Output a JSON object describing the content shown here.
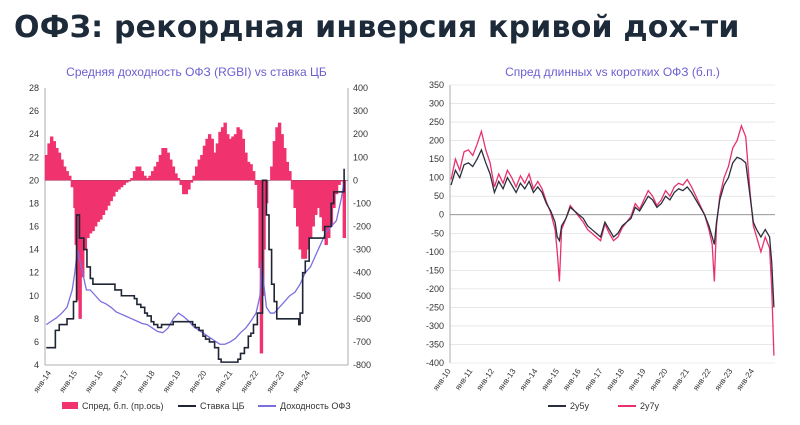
{
  "title": "ОФЗ: рекордная инверсия кривой дох-ти",
  "colors": {
    "title": "#1d2a3a",
    "spread": "#f0326e",
    "key_rate": "#1f2535",
    "yield": "#7a6fe0",
    "y2y5": "#2a2f3d",
    "y2y7": "#e8316f",
    "chart_title": "#6b5fd0"
  },
  "chart_data": [
    {
      "type": "bar+line",
      "title": "Средняя доходность ОФЗ (RGBI) vs ставка ЦБ",
      "x_ticks": [
        "янв-14",
        "янв-15",
        "янв-16",
        "янв-17",
        "янв-18",
        "янв-19",
        "янв-20",
        "янв-21",
        "янв-22",
        "янв-23",
        "янв-24"
      ],
      "x_range": [
        2013.75,
        2025.45
      ],
      "left_axis": {
        "range": [
          4,
          28
        ],
        "ticks": [
          "28",
          "26",
          "24",
          "22",
          "20",
          "18",
          "16",
          "14",
          "12",
          "10",
          "8",
          "6",
          "4"
        ]
      },
      "right_axis": {
        "range": [
          -800,
          400
        ],
        "ticks": [
          "400",
          "300",
          "200",
          "100",
          "0",
          "-100",
          "-200",
          "-300",
          "-400",
          "-500",
          "-600",
          "-700",
          "-800"
        ]
      },
      "legend": [
        "Спред, б.п. (пр.ось)",
        "Ставка ЦБ",
        "Доходность ОФЗ"
      ],
      "series": [
        {
          "name": "Спред, б.п. (пр.ось)",
          "axis": "right",
          "style": "bars",
          "x": [
            2013.8,
            2013.9,
            2014.0,
            2014.1,
            2014.2,
            2014.3,
            2014.4,
            2014.5,
            2014.6,
            2014.7,
            2014.8,
            2014.9,
            2014.95,
            2015.0,
            2015.1,
            2015.2,
            2015.3,
            2015.4,
            2015.5,
            2015.6,
            2015.7,
            2015.8,
            2015.9,
            2016.0,
            2016.1,
            2016.2,
            2016.3,
            2016.4,
            2016.5,
            2016.6,
            2016.7,
            2016.8,
            2016.9,
            2017.0,
            2017.1,
            2017.2,
            2017.3,
            2017.4,
            2017.5,
            2017.6,
            2017.7,
            2017.8,
            2017.9,
            2018.0,
            2018.1,
            2018.2,
            2018.3,
            2018.4,
            2018.5,
            2018.6,
            2018.7,
            2018.8,
            2018.9,
            2019.0,
            2019.1,
            2019.2,
            2019.3,
            2019.4,
            2019.5,
            2019.6,
            2019.7,
            2019.8,
            2019.9,
            2020.0,
            2020.1,
            2020.2,
            2020.3,
            2020.4,
            2020.5,
            2020.6,
            2020.7,
            2020.8,
            2020.9,
            2021.0,
            2021.1,
            2021.2,
            2021.3,
            2021.4,
            2021.5,
            2021.6,
            2021.7,
            2021.8,
            2021.9,
            2022.0,
            2022.05,
            2022.1,
            2022.15,
            2022.2,
            2022.3,
            2022.4,
            2022.5,
            2022.6,
            2022.7,
            2022.8,
            2022.9,
            2023.0,
            2023.1,
            2023.2,
            2023.3,
            2023.4,
            2023.5,
            2023.6,
            2023.7,
            2023.8,
            2023.9,
            2024.0,
            2024.1,
            2024.2,
            2024.3,
            2024.4,
            2024.5,
            2024.6,
            2024.7,
            2024.8,
            2024.9,
            2025.0,
            2025.1,
            2025.2,
            2025.3
          ],
          "values": [
            110,
            160,
            190,
            170,
            140,
            120,
            90,
            60,
            40,
            20,
            -30,
            -120,
            -280,
            -520,
            -600,
            -420,
            -300,
            -250,
            -230,
            -220,
            -200,
            -180,
            -170,
            -150,
            -130,
            -110,
            -90,
            -70,
            -50,
            -40,
            -30,
            -20,
            -10,
            -5,
            10,
            40,
            60,
            60,
            40,
            20,
            10,
            20,
            40,
            60,
            80,
            110,
            140,
            140,
            120,
            90,
            60,
            30,
            10,
            -20,
            -60,
            -60,
            -40,
            -10,
            20,
            60,
            90,
            110,
            150,
            180,
            200,
            180,
            120,
            160,
            210,
            230,
            250,
            200,
            180,
            190,
            200,
            230,
            220,
            180,
            120,
            80,
            70,
            40,
            -20,
            -120,
            -380,
            -750,
            -500,
            -300,
            -100,
            0,
            60,
            170,
            230,
            250,
            200,
            140,
            80,
            40,
            -40,
            -120,
            -200,
            -300,
            -340,
            -340,
            -300,
            -250,
            -200,
            -150,
            -120,
            -160,
            -220,
            -280,
            -250,
            -200,
            -120,
            -60,
            -20,
            -5,
            -250
          ],
          "note": "values estimated from bar heights against the right axis"
        },
        {
          "name": "Ставка ЦБ",
          "axis": "left",
          "style": "step",
          "x": [
            2013.8,
            2014.15,
            2014.3,
            2014.6,
            2014.85,
            2014.97,
            2015.08,
            2015.25,
            2015.37,
            2015.5,
            2015.6,
            2016.45,
            2016.7,
            2017.2,
            2017.3,
            2017.45,
            2017.6,
            2017.7,
            2017.85,
            2017.95,
            2018.1,
            2018.25,
            2018.7,
            2018.95,
            2019.45,
            2019.55,
            2019.7,
            2019.85,
            2019.95,
            2020.1,
            2020.3,
            2020.45,
            2020.55,
            2021.2,
            2021.3,
            2021.45,
            2021.6,
            2021.7,
            2021.8,
            2021.95,
            2022.15,
            2022.3,
            2022.4,
            2022.5,
            2022.6,
            2022.7,
            2023.55,
            2023.6,
            2023.7,
            2023.8,
            2023.95,
            2024.55,
            2024.8,
            2024.9,
            2025.3
          ],
          "values": [
            5.5,
            7.0,
            7.5,
            8.0,
            9.5,
            17.0,
            15.0,
            14.0,
            12.5,
            11.5,
            11.0,
            10.5,
            10.0,
            9.75,
            9.25,
            9.0,
            8.5,
            8.25,
            7.75,
            7.5,
            7.25,
            7.5,
            7.75,
            7.75,
            7.5,
            7.25,
            7.0,
            6.5,
            6.25,
            6.0,
            5.5,
            4.5,
            4.25,
            4.5,
            5.0,
            5.5,
            6.5,
            6.75,
            7.5,
            8.5,
            20.0,
            17.0,
            14.0,
            11.0,
            9.5,
            8.0,
            7.5,
            8.5,
            12.0,
            13.0,
            15.0,
            16.0,
            18.0,
            19.0,
            21.0
          ]
        },
        {
          "name": "Доходность ОФЗ",
          "axis": "left",
          "style": "line",
          "x": [
            2013.8,
            2014.0,
            2014.2,
            2014.4,
            2014.6,
            2014.8,
            2014.9,
            2015.0,
            2015.1,
            2015.2,
            2015.35,
            2015.5,
            2015.7,
            2015.9,
            2016.1,
            2016.3,
            2016.5,
            2016.7,
            2016.9,
            2017.1,
            2017.3,
            2017.5,
            2017.7,
            2017.9,
            2018.1,
            2018.3,
            2018.5,
            2018.7,
            2018.9,
            2019.1,
            2019.3,
            2019.5,
            2019.7,
            2019.9,
            2020.1,
            2020.3,
            2020.5,
            2020.7,
            2020.9,
            2021.1,
            2021.3,
            2021.5,
            2021.7,
            2021.9,
            2022.05,
            2022.12,
            2022.2,
            2022.3,
            2022.45,
            2022.6,
            2022.8,
            2023.0,
            2023.2,
            2023.4,
            2023.6,
            2023.8,
            2024.0,
            2024.2,
            2024.4,
            2024.6,
            2024.8,
            2025.0,
            2025.2,
            2025.3
          ],
          "values": [
            7.5,
            7.8,
            8.1,
            8.5,
            9.0,
            10.5,
            12.0,
            14.0,
            13.0,
            12.0,
            10.5,
            10.5,
            10.0,
            9.5,
            9.3,
            9.0,
            8.6,
            8.4,
            8.2,
            8.0,
            7.8,
            7.6,
            7.5,
            7.2,
            6.9,
            6.8,
            7.2,
            8.0,
            8.5,
            8.2,
            7.8,
            7.3,
            7.0,
            6.7,
            6.4,
            6.1,
            5.8,
            5.8,
            6.0,
            6.3,
            6.8,
            7.2,
            7.8,
            8.5,
            10.0,
            13.0,
            11.0,
            9.0,
            8.5,
            8.5,
            9.0,
            9.5,
            10.0,
            10.3,
            11.0,
            12.0,
            12.5,
            13.5,
            14.5,
            15.5,
            16.0,
            16.5,
            18.5,
            20.0
          ]
        }
      ]
    },
    {
      "type": "line",
      "title": "Спред длинных vs коротких ОФЗ (б.п.)",
      "x_ticks": [
        "янв-10",
        "янв-11",
        "янв-12",
        "янв-13",
        "янв-14",
        "янв-15",
        "янв-16",
        "янв-17",
        "янв-18",
        "янв-19",
        "янв-20",
        "янв-21",
        "янв-22",
        "янв-23",
        "янв-24"
      ],
      "x_range": [
        2009.95,
        2024.95
      ],
      "y_axis": {
        "range": [
          -400,
          350
        ],
        "ticks": [
          "350",
          "300",
          "250",
          "200",
          "150",
          "100",
          "50",
          "0",
          "-50",
          "-100",
          "-150",
          "-200",
          "-250",
          "-300",
          "-350",
          "-400"
        ]
      },
      "legend": [
        "2y5y",
        "2y7y"
      ],
      "series": [
        {
          "name": "2y5y",
          "x": [
            2010.0,
            2010.2,
            2010.4,
            2010.6,
            2010.8,
            2011.0,
            2011.2,
            2011.4,
            2011.6,
            2011.8,
            2012.0,
            2012.2,
            2012.4,
            2012.6,
            2012.8,
            2013.0,
            2013.2,
            2013.4,
            2013.6,
            2013.8,
            2014.0,
            2014.2,
            2014.4,
            2014.6,
            2014.8,
            2014.9,
            2015.0,
            2015.1,
            2015.3,
            2015.5,
            2015.7,
            2015.9,
            2016.1,
            2016.3,
            2016.5,
            2016.7,
            2016.9,
            2017.1,
            2017.3,
            2017.5,
            2017.7,
            2017.9,
            2018.1,
            2018.3,
            2018.5,
            2018.7,
            2018.9,
            2019.1,
            2019.3,
            2019.5,
            2019.7,
            2019.9,
            2020.1,
            2020.3,
            2020.5,
            2020.7,
            2020.9,
            2021.1,
            2021.3,
            2021.5,
            2021.7,
            2021.9,
            2022.05,
            2022.15,
            2022.25,
            2022.4,
            2022.6,
            2022.8,
            2023.0,
            2023.2,
            2023.4,
            2023.6,
            2023.8,
            2023.95,
            2024.1,
            2024.3,
            2024.5,
            2024.7,
            2024.8,
            2024.9
          ],
          "values": [
            80,
            120,
            100,
            135,
            140,
            130,
            150,
            175,
            140,
            110,
            60,
            90,
            70,
            100,
            80,
            60,
            85,
            70,
            90,
            60,
            75,
            60,
            30,
            10,
            -20,
            -60,
            -70,
            -30,
            -10,
            20,
            10,
            0,
            -10,
            -30,
            -40,
            -50,
            -60,
            -20,
            -40,
            -60,
            -50,
            -30,
            -20,
            -10,
            20,
            10,
            30,
            50,
            40,
            20,
            30,
            50,
            40,
            60,
            70,
            65,
            75,
            60,
            40,
            20,
            0,
            -30,
            -60,
            -80,
            -20,
            40,
            80,
            100,
            140,
            155,
            150,
            140,
            50,
            -20,
            -40,
            -60,
            -40,
            -60,
            -130,
            -250
          ]
        },
        {
          "name": "2y7y",
          "x": [
            2010.0,
            2010.2,
            2010.4,
            2010.6,
            2010.8,
            2011.0,
            2011.2,
            2011.4,
            2011.6,
            2011.8,
            2012.0,
            2012.2,
            2012.4,
            2012.6,
            2012.8,
            2013.0,
            2013.2,
            2013.4,
            2013.6,
            2013.8,
            2014.0,
            2014.2,
            2014.4,
            2014.6,
            2014.8,
            2014.9,
            2015.0,
            2015.1,
            2015.3,
            2015.5,
            2015.7,
            2015.9,
            2016.1,
            2016.3,
            2016.5,
            2016.7,
            2016.9,
            2017.1,
            2017.3,
            2017.5,
            2017.7,
            2017.9,
            2018.1,
            2018.3,
            2018.5,
            2018.7,
            2018.9,
            2019.1,
            2019.3,
            2019.5,
            2019.7,
            2019.9,
            2020.1,
            2020.3,
            2020.5,
            2020.7,
            2020.9,
            2021.1,
            2021.3,
            2021.5,
            2021.7,
            2021.9,
            2022.05,
            2022.15,
            2022.25,
            2022.4,
            2022.6,
            2022.8,
            2023.0,
            2023.2,
            2023.4,
            2023.6,
            2023.8,
            2023.95,
            2024.1,
            2024.3,
            2024.5,
            2024.7,
            2024.8,
            2024.9
          ],
          "values": [
            95,
            150,
            120,
            170,
            175,
            160,
            190,
            225,
            175,
            140,
            75,
            110,
            85,
            120,
            100,
            75,
            105,
            85,
            110,
            70,
            90,
            70,
            35,
            5,
            -40,
            -100,
            -180,
            -40,
            -10,
            25,
            10,
            -5,
            -20,
            -40,
            -50,
            -60,
            -70,
            -25,
            -50,
            -70,
            -60,
            -35,
            -20,
            -5,
            30,
            15,
            40,
            65,
            50,
            25,
            40,
            65,
            50,
            75,
            85,
            80,
            95,
            75,
            50,
            25,
            0,
            -40,
            -80,
            -180,
            -30,
            50,
            100,
            130,
            180,
            200,
            240,
            210,
            60,
            -30,
            -60,
            -100,
            -60,
            -90,
            -200,
            -380
          ]
        }
      ]
    }
  ]
}
